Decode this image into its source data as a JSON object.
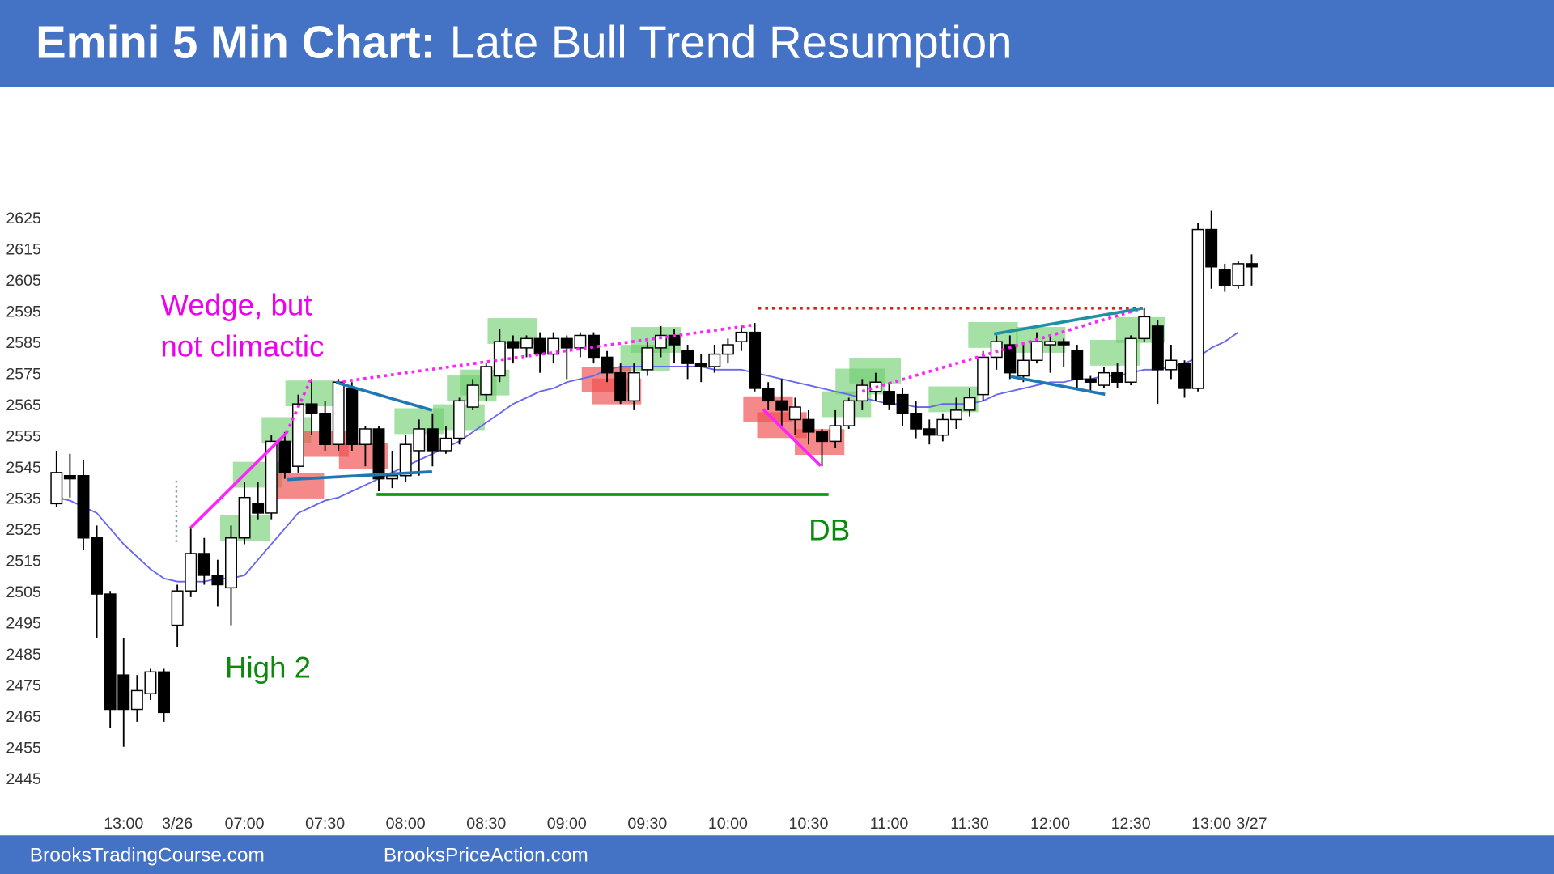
{
  "chart_data": {
    "type": "candlestick",
    "title": "Emini 5 Min Chart:",
    "subtitle": "Late Bull Trend Resumption",
    "footer": [
      "BrooksTradingCourse.com",
      "BrooksPriceAction.com"
    ],
    "annotations": [
      "Wedge, but",
      "not climactic",
      "High 2",
      "DB"
    ],
    "categories": [
      null,
      null,
      null,
      null,
      null,
      "13:00",
      null,
      null,
      null,
      "3/26",
      null,
      null,
      null,
      null,
      "07:00",
      null,
      null,
      null,
      null,
      null,
      "07:30",
      null,
      null,
      null,
      null,
      null,
      "08:00",
      null,
      null,
      null,
      null,
      null,
      "08:30",
      null,
      null,
      null,
      null,
      null,
      "09:00",
      null,
      null,
      null,
      null,
      null,
      "09:30",
      null,
      null,
      null,
      null,
      null,
      "10:00",
      null,
      null,
      null,
      null,
      null,
      "10:30",
      null,
      null,
      null,
      null,
      null,
      "11:00",
      null,
      null,
      null,
      null,
      null,
      "11:30",
      null,
      null,
      null,
      null,
      null,
      "12:00",
      null,
      null,
      null,
      null,
      null,
      "12:30",
      null,
      null,
      null,
      null,
      null,
      "13:00",
      null,
      null,
      "3/27"
    ],
    "open": [
      2533,
      2542,
      2542,
      2522,
      2504,
      2478,
      2467,
      2472,
      2479,
      2494,
      2505,
      2517,
      2510,
      2506,
      2522,
      2533,
      2530,
      2553,
      2545,
      2565,
      2562,
      2552,
      2570,
      2552,
      2557,
      2541,
      2542,
      2550,
      2557,
      2550,
      2554,
      2564,
      2568,
      2574,
      2585,
      2583,
      2586,
      2581,
      2586,
      2583,
      2587,
      2580,
      2575,
      2566,
      2576,
      2583,
      2587,
      2582,
      2578,
      2577,
      2581,
      2585,
      2588,
      2570,
      2566,
      2560,
      2560,
      2556,
      2553,
      2558,
      2566,
      2569,
      2569,
      2568,
      2562,
      2557,
      2555,
      2560,
      2563,
      2568,
      2580,
      2584,
      2574,
      2579,
      2584,
      2585,
      2582,
      2573,
      2571,
      2575,
      2572,
      2586,
      2590,
      2576,
      2578,
      2570,
      2621,
      2608,
      2603,
      2610
    ],
    "high": [
      2550,
      2549,
      2547,
      2526,
      2505,
      2490,
      2478,
      2480,
      2480,
      2507,
      2525,
      2522,
      2515,
      2526,
      2540,
      2540,
      2555,
      2556,
      2568,
      2573,
      2566,
      2573,
      2572,
      2558,
      2558,
      2550,
      2555,
      2560,
      2562,
      2558,
      2567,
      2573,
      2578,
      2589,
      2587,
      2587,
      2588,
      2588,
      2587,
      2588,
      2588,
      2582,
      2578,
      2578,
      2585,
      2590,
      2589,
      2584,
      2581,
      2584,
      2586,
      2590,
      2591,
      2572,
      2573,
      2567,
      2563,
      2557,
      2563,
      2567,
      2573,
      2575,
      2572,
      2570,
      2566,
      2560,
      2562,
      2567,
      2570,
      2582,
      2587,
      2587,
      2584,
      2588,
      2587,
      2586,
      2584,
      2574,
      2577,
      2578,
      2587,
      2596,
      2592,
      2584,
      2579,
      2623,
      2627,
      2610,
      2611,
      2613
    ],
    "low": [
      2532,
      2535,
      2518,
      2490,
      2461,
      2455,
      2463,
      2470,
      2463,
      2487,
      2503,
      2507,
      2500,
      2494,
      2520,
      2528,
      2528,
      2541,
      2543,
      2555,
      2550,
      2550,
      2550,
      2545,
      2537,
      2538,
      2540,
      2542,
      2545,
      2549,
      2552,
      2563,
      2566,
      2572,
      2578,
      2580,
      2575,
      2578,
      2573,
      2580,
      2578,
      2572,
      2565,
      2563,
      2574,
      2580,
      2578,
      2573,
      2572,
      2575,
      2578,
      2582,
      2569,
      2563,
      2558,
      2555,
      2552,
      2545,
      2551,
      2557,
      2563,
      2566,
      2563,
      2558,
      2554,
      2552,
      2553,
      2557,
      2561,
      2566,
      2576,
      2573,
      2572,
      2578,
      2575,
      2577,
      2570,
      2569,
      2570,
      2570,
      2571,
      2585,
      2565,
      2573,
      2567,
      2569,
      2602,
      2601,
      2602,
      2603
    ],
    "close": [
      2543,
      2541,
      2522,
      2504,
      2467,
      2467,
      2473,
      2479,
      2466,
      2505,
      2517,
      2510,
      2507,
      2522,
      2535,
      2530,
      2553,
      2543,
      2565,
      2562,
      2552,
      2572,
      2552,
      2557,
      2541,
      2542,
      2552,
      2557,
      2550,
      2554,
      2566,
      2571,
      2577,
      2585,
      2583,
      2586,
      2581,
      2586,
      2583,
      2587,
      2580,
      2575,
      2566,
      2575,
      2583,
      2587,
      2584,
      2578,
      2577,
      2581,
      2584,
      2588,
      2570,
      2566,
      2563,
      2564,
      2556,
      2553,
      2558,
      2566,
      2571,
      2572,
      2565,
      2562,
      2557,
      2555,
      2560,
      2563,
      2567,
      2580,
      2585,
      2575,
      2579,
      2585,
      2585,
      2584,
      2573,
      2572,
      2575,
      2572,
      2586,
      2593,
      2576,
      2579,
      2570,
      2621,
      2609,
      2603,
      2610,
      2609
    ],
    "ema": {
      "color": "#6666ee",
      "values": [
        2535,
        2534,
        2532,
        2530,
        2525,
        2520,
        2516,
        2512,
        2509,
        2508,
        2508,
        2508,
        2509,
        2509,
        2510,
        2515,
        2520,
        2525,
        2530,
        2532,
        2534,
        2535,
        2537,
        2539,
        2541,
        2543,
        2545,
        2547,
        2549,
        2551,
        2553,
        2556,
        2559,
        2562,
        2565,
        2567,
        2569,
        2570,
        2572,
        2573,
        2574,
        2576,
        2577,
        2577,
        2577,
        2577,
        2577,
        2577,
        2577,
        2576,
        2576,
        2576,
        2575,
        2574,
        2573,
        2572,
        2571,
        2570,
        2569,
        2568,
        2567,
        2566,
        2565,
        2565,
        2564,
        2564,
        2565,
        2565,
        2565,
        2566,
        2568,
        2569,
        2570,
        2571,
        2572,
        2572,
        2573,
        2573,
        2574,
        2574,
        2575,
        2576,
        2576,
        2577,
        2578,
        2580,
        2583,
        2585,
        2588,
        null
      ]
    },
    "ylim": [
      2445,
      2625
    ],
    "yticks": [
      2445,
      2455,
      2465,
      2475,
      2485,
      2495,
      2505,
      2515,
      2525,
      2535,
      2545,
      2555,
      2565,
      2575,
      2585,
      2595,
      2605,
      2615,
      2625
    ]
  }
}
